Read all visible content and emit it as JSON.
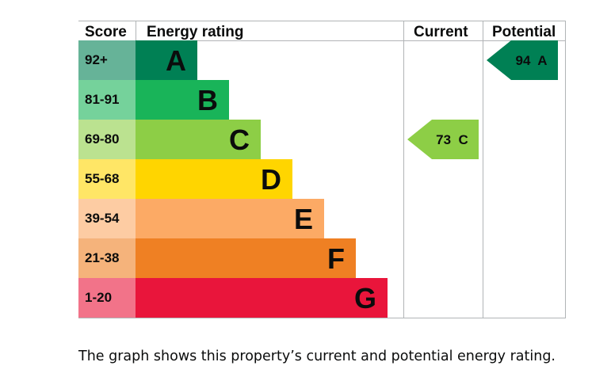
{
  "chart_data": {
    "type": "bar",
    "headers": {
      "score": "Score",
      "rating": "Energy rating",
      "current": "Current",
      "potential": "Potential"
    },
    "bands": [
      {
        "letter": "A",
        "range": "92+",
        "color": "#008054",
        "score_color": "#66b398"
      },
      {
        "letter": "B",
        "range": "81-91",
        "color": "#19b459",
        "score_color": "#75d29b"
      },
      {
        "letter": "C",
        "range": "69-80",
        "color": "#8dce46",
        "score_color": "#bbe290"
      },
      {
        "letter": "D",
        "range": "55-68",
        "color": "#ffd500",
        "score_color": "#ffe666"
      },
      {
        "letter": "E",
        "range": "39-54",
        "color": "#fcaa65",
        "score_color": "#fdcca3"
      },
      {
        "letter": "F",
        "range": "21-38",
        "color": "#ef8023",
        "score_color": "#f5b37b"
      },
      {
        "letter": "G",
        "range": "1-20",
        "color": "#e9153b",
        "score_color": "#f27389"
      }
    ],
    "current": {
      "value": 73,
      "band": "C",
      "label": "73  C"
    },
    "potential": {
      "value": 94,
      "band": "A",
      "label": "94  A"
    }
  },
  "caption": "The graph shows this property’s current and potential energy rating."
}
